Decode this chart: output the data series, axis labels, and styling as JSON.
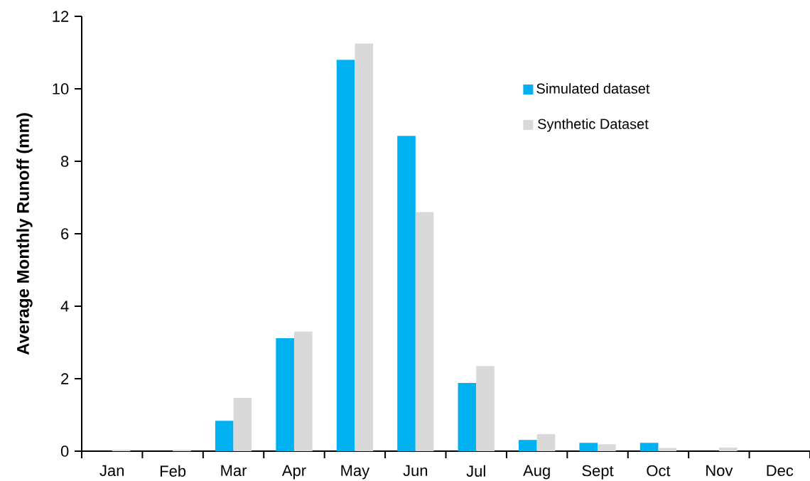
{
  "chart_data": {
    "type": "bar",
    "ylabel": "Average Monthly Runoff (mm)",
    "categories": [
      "Jan",
      "Feb",
      "Mar",
      "Apr",
      "May",
      "Jun",
      "Jul",
      "Aug",
      "Sept",
      "Oct",
      "Nov",
      "Dec"
    ],
    "series": [
      {
        "name": "Simulated dataset",
        "color": "#00b0f0",
        "values": [
          0,
          0,
          0.84,
          3.12,
          10.8,
          8.7,
          1.88,
          0.31,
          0.23,
          0.23,
          0,
          0
        ]
      },
      {
        "name": "Synthetic Dataset",
        "color": "#d9d9d9",
        "values": [
          0.04,
          0.04,
          1.47,
          3.3,
          11.25,
          6.6,
          2.35,
          0.47,
          0.19,
          0.09,
          0.1,
          0
        ]
      }
    ],
    "ylim": [
      0,
      12
    ],
    "yticks": [
      0,
      2,
      4,
      6,
      8,
      10,
      12
    ],
    "grid": false,
    "legend": "top right"
  }
}
